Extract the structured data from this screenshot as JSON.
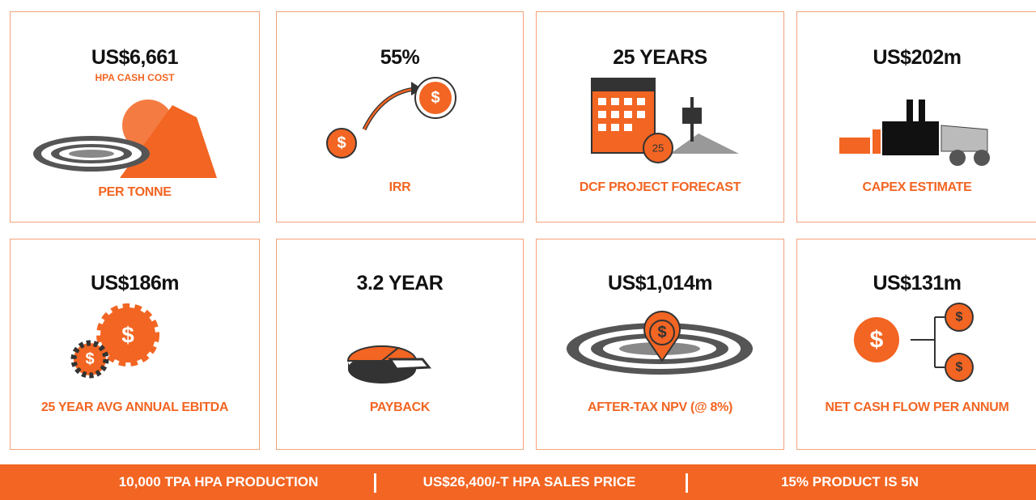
{
  "symbol": "$",
  "cards": [
    {
      "value": "US$6,661",
      "sublabel": "HPA CASH COST",
      "label": "PER TONNE"
    },
    {
      "value": "55%",
      "label": "IRR"
    },
    {
      "value": "25 YEARS",
      "icon_number": "25",
      "label": "DCF PROJECT FORECAST"
    },
    {
      "value": "US$202m",
      "label": "CAPEX ESTIMATE"
    },
    {
      "value": "US$186m",
      "label": "25 YEAR AVG ANNUAL EBITDA"
    },
    {
      "value": "3.2 YEAR",
      "label": "PAYBACK"
    },
    {
      "value": "US$1,014m",
      "label": "AFTER-TAX NPV (@ 8%)"
    },
    {
      "value": "US$131m",
      "label": "NET CASH FLOW PER ANNUM"
    }
  ],
  "banner": {
    "items": [
      "10,000 TPA HPA PRODUCTION",
      "US$26,400/-T HPA SALES PRICE",
      "15% PRODUCT IS 5N"
    ]
  }
}
